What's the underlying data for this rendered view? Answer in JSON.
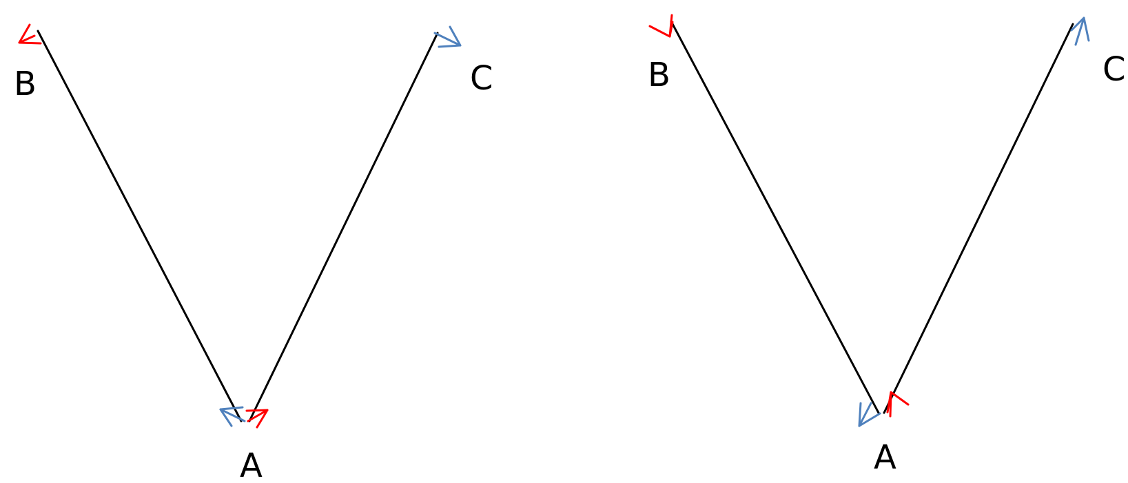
{
  "diagrams": [
    {
      "name": "left",
      "labels": {
        "a": "A",
        "b": "B",
        "c": "C"
      }
    },
    {
      "name": "right",
      "labels": {
        "a": "A",
        "b": "B",
        "c": "C"
      }
    }
  ],
  "colors": {
    "line": "#000000",
    "red_arrow": "#ff0000",
    "blue_arrow": "#4f81bd",
    "background": "#ffffff"
  }
}
